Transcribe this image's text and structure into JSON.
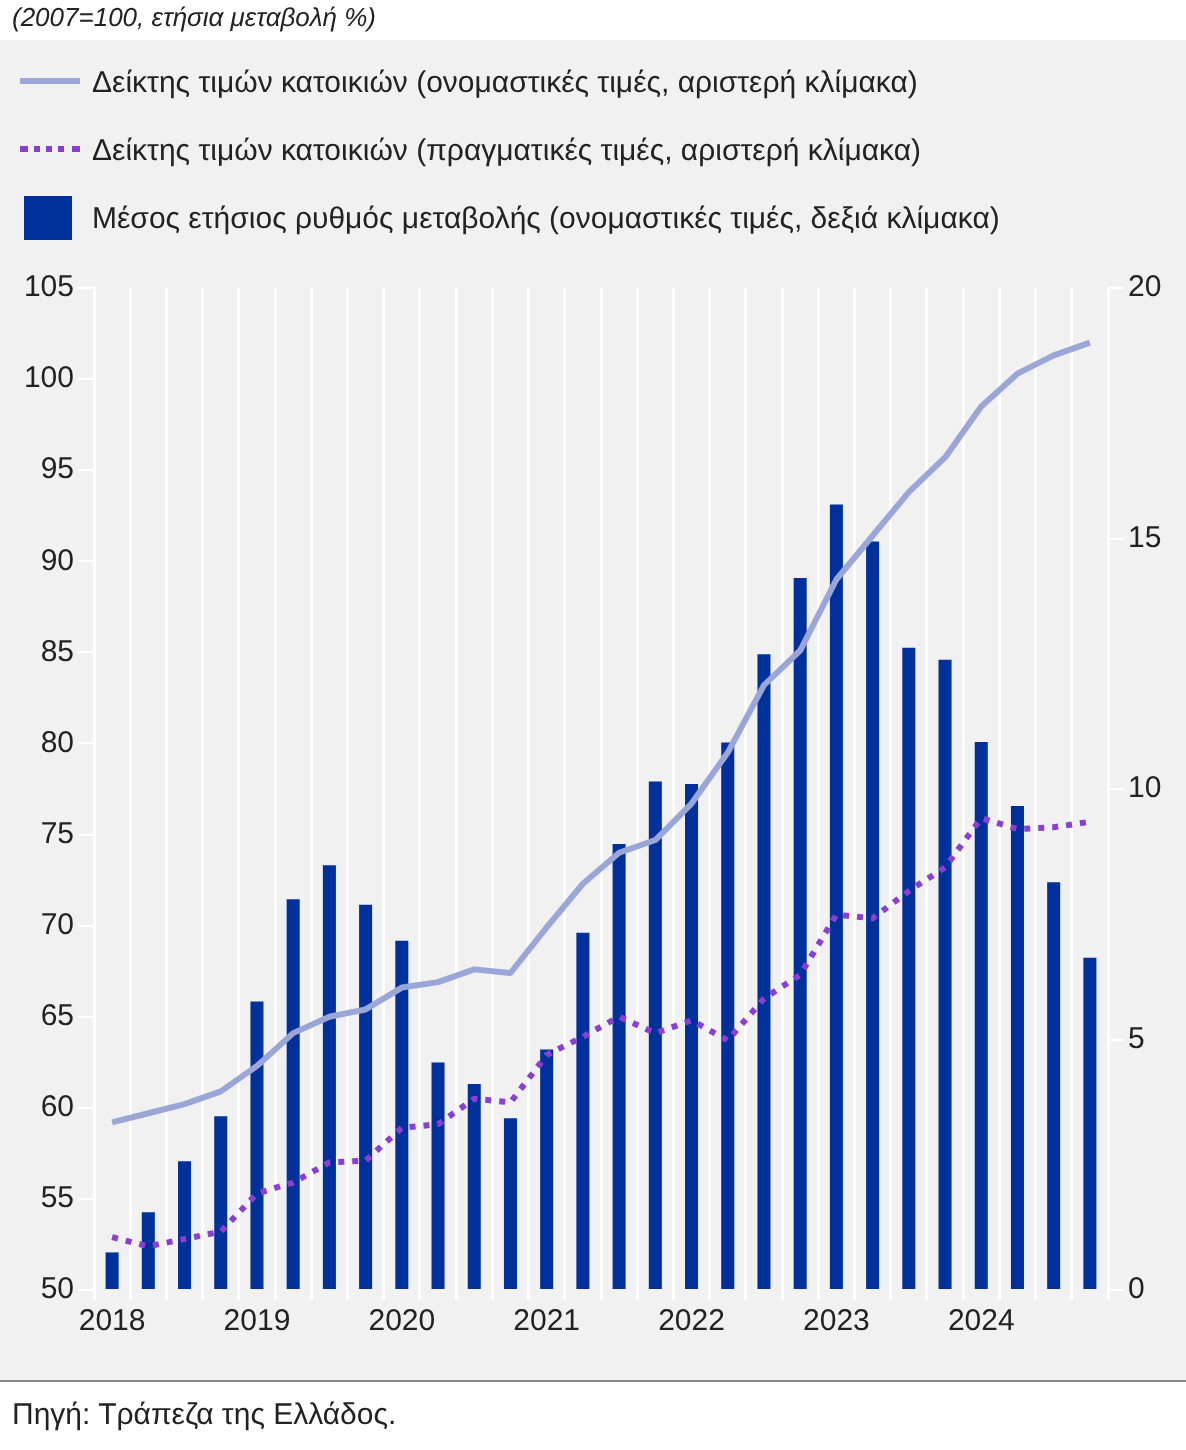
{
  "chart_data": {
    "type": "bar",
    "subtitle": "(2007=100, ετήσια μεταβολή %)",
    "categories": [
      "2018",
      null,
      null,
      null,
      "2019",
      null,
      null,
      null,
      "2020",
      null,
      null,
      null,
      "2021",
      null,
      null,
      null,
      "2022",
      null,
      null,
      null,
      "2023",
      null,
      null,
      null,
      "2024",
      null,
      null,
      null
    ],
    "series": [
      {
        "name": "Δείκτης τιμών κατοικιών (ονομαστικές τιμές, αριστερή κλίμακα)",
        "type": "line",
        "axis": "y",
        "color": "#9aa6d8",
        "line_style": "solid",
        "values": [
          59.2,
          59.7,
          60.2,
          60.9,
          62.3,
          64.1,
          65.0,
          65.4,
          66.6,
          66.9,
          67.6,
          67.4,
          69.9,
          72.3,
          74.0,
          74.7,
          76.7,
          79.5,
          83.2,
          85.1,
          89.0,
          91.4,
          93.8,
          95.7,
          98.5,
          100.3,
          101.3,
          102.0
        ]
      },
      {
        "name": "Δείκτης τιμών κατοικιών (πραγματικές τιμές, αριστερή κλίμακα)",
        "type": "line",
        "axis": "y",
        "color": "#8a3fd0",
        "line_style": "dotted",
        "values": [
          52.9,
          52.4,
          52.8,
          53.2,
          55.3,
          55.9,
          57.0,
          57.1,
          58.9,
          59.1,
          60.5,
          60.3,
          62.9,
          63.9,
          65.0,
          64.1,
          64.8,
          63.7,
          66.0,
          67.3,
          70.6,
          70.4,
          71.9,
          73.2,
          75.9,
          75.3,
          75.4,
          75.7
        ]
      },
      {
        "name": "Μέσος ετήσιος ρυθμός μεταβολής (ονομαστικές τιμές, δεξιά κλίμακα)",
        "axis": "y2",
        "color": "#00309b",
        "values": [
          0.75,
          1.55,
          2.57,
          3.47,
          5.76,
          7.8,
          8.48,
          7.69,
          6.97,
          4.54,
          4.11,
          3.43,
          4.8,
          7.13,
          8.9,
          10.15,
          10.1,
          10.93,
          12.69,
          14.21,
          15.68,
          14.94,
          12.82,
          12.58,
          10.94,
          9.66,
          8.14,
          6.63
        ]
      }
    ],
    "ylim": [
      50,
      105
    ],
    "yticks": [
      50,
      55,
      60,
      65,
      70,
      75,
      80,
      85,
      90,
      95,
      100,
      105
    ],
    "y2lim": [
      0,
      20
    ],
    "y2ticks": [
      0,
      5,
      10,
      15,
      20
    ],
    "grid": "x",
    "legend": "top",
    "annotations": [
      "Πηγή: Τράπεζα της Ελλάδος."
    ]
  }
}
